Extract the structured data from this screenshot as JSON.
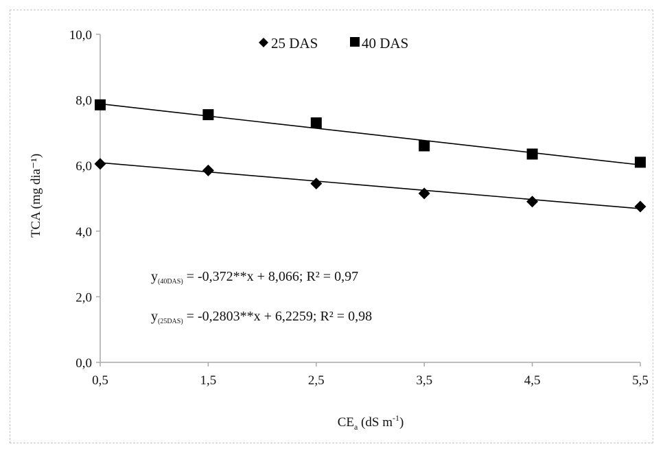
{
  "chart_data": {
    "type": "scatter",
    "x": [
      0.5,
      1.5,
      2.5,
      3.5,
      4.5,
      5.5
    ],
    "x_tick_labels": [
      "0,5",
      "1,5",
      "2,5",
      "3,5",
      "4,5",
      "5,5"
    ],
    "y_tick_values": [
      0,
      2,
      4,
      6,
      8,
      10
    ],
    "y_tick_labels": [
      "0,0",
      "2,0",
      "4,0",
      "6,0",
      "8,0",
      "10,0"
    ],
    "ylim": [
      0,
      10
    ],
    "xlim": [
      0.5,
      5.5
    ],
    "xlabel": {
      "main": "CE",
      "sub": "a",
      "rest": " (dS m",
      "sup": "-1",
      "end": ")"
    },
    "ylabel": "TCA (mg dia⁻¹)",
    "grid": false,
    "legend_position": "top",
    "series": [
      {
        "name": "25 DAS",
        "marker": "diamond",
        "values": [
          6.05,
          5.85,
          5.45,
          5.15,
          4.9,
          4.75
        ],
        "trendline": {
          "slope": -0.2803,
          "intercept": 6.2259
        },
        "equation": {
          "prefix": "y",
          "sub": "(25DAS)",
          "text": " = -0,2803**x + 6,2259; R² = 0,98"
        }
      },
      {
        "name": "40 DAS",
        "marker": "square",
        "values": [
          7.85,
          7.55,
          7.3,
          6.6,
          6.35,
          6.1
        ],
        "trendline": {
          "slope": -0.372,
          "intercept": 8.066
        },
        "equation": {
          "prefix": "y",
          "sub": "(40DAS)",
          "text": " = -0,372**x + 8,066; R² = 0,97"
        }
      }
    ],
    "colors": {
      "axis": "#a8a8a8",
      "marker": "#000000",
      "line": "#000000"
    }
  }
}
